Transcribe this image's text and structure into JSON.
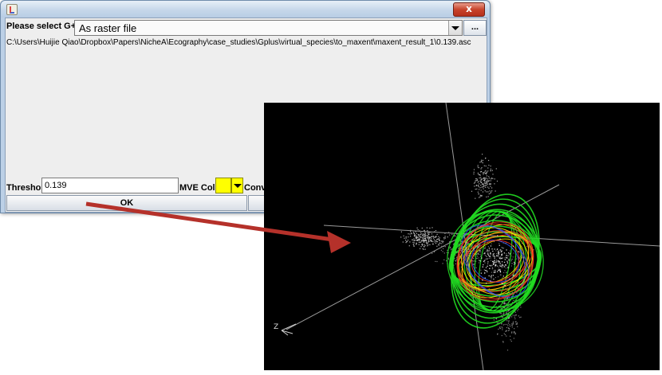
{
  "window": {
    "close_label": "x",
    "g_label": "Please select G+(s)",
    "combo_value": "As raster file",
    "browse_label": "...",
    "path": "C:\\Users\\Huijie Qiao\\Dropbox\\Papers\\NicheA\\Ecography\\case_studies\\Gplus\\virtual_species\\to_maxent\\maxent_result_1\\0.139.asc",
    "threshold_label": "Threshold",
    "threshold_value": "0.139",
    "mve_color_label": "MVE Color",
    "mve_color": "#ffff00",
    "conv_label": "Conve",
    "ok_label": "OK"
  },
  "viewer": {
    "axis_glyph": "Z"
  },
  "colors": {
    "annotation_arrow": "#b5312a",
    "ellipsoid_green": "#22dd22",
    "ellipsoid_red": "#ff3322",
    "ellipsoid_yellow": "#ffee00",
    "ellipsoid_blue": "#3355ff",
    "points": "#cccccc"
  }
}
